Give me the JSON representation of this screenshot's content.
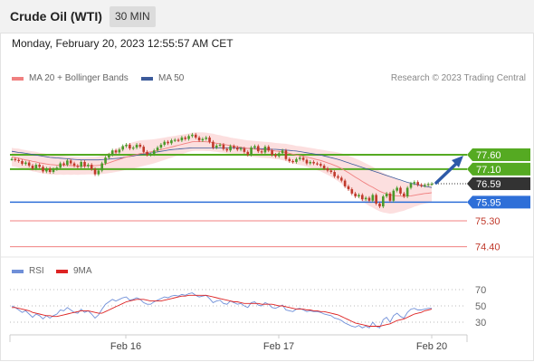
{
  "header": {
    "instrument": "Crude Oil (WTI)",
    "timeframe": "30 MIN"
  },
  "datetime": "Monday, February 20, 2023 12:55:57 AM CET",
  "legend": {
    "bollinger": "MA 20 + Bollinger Bands",
    "ma50": "MA 50",
    "credit": "Research © 2023 Trading Central",
    "rsi": "RSI",
    "rsi_ma": "9MA"
  },
  "colors": {
    "up": "#4a9a2a",
    "down": "#c0392b",
    "ma20": "#f08080",
    "ma50": "#3c5a9a",
    "band": "#fbd9d9",
    "resistance": "#55aa22",
    "support": "#2e6fd8",
    "target": "#f08080",
    "current": "#333333",
    "rsi": "#6f8fd8",
    "rsi_ma": "#dd2222"
  },
  "chart_data": [
    {
      "type": "candlestick",
      "x_ticks": [
        "Feb 16",
        "Feb 17",
        "Feb 20"
      ],
      "ylim": [
        74.2,
        78.3
      ],
      "levels": [
        {
          "value": 77.6,
          "label": "77.60",
          "kind": "resistance"
        },
        {
          "value": 77.1,
          "label": "77.10",
          "kind": "resistance"
        },
        {
          "value": 76.59,
          "label": "76.59",
          "kind": "current"
        },
        {
          "value": 75.95,
          "label": "75.95",
          "kind": "pivot"
        },
        {
          "value": 75.3,
          "label": "75.30",
          "kind": "target"
        },
        {
          "value": 74.4,
          "label": "74.40",
          "kind": "target"
        }
      ],
      "close": [
        77.45,
        77.42,
        77.38,
        77.28,
        77.33,
        77.22,
        77.12,
        77.25,
        77.18,
        77.02,
        77.12,
        77.0,
        77.1,
        77.15,
        77.3,
        77.25,
        77.4,
        77.3,
        77.22,
        77.18,
        77.35,
        77.2,
        77.25,
        77.1,
        76.92,
        77.05,
        77.3,
        77.5,
        77.6,
        77.75,
        77.68,
        77.78,
        77.9,
        77.95,
        77.82,
        77.85,
        77.95,
        77.88,
        77.7,
        77.6,
        77.62,
        77.75,
        77.85,
        77.95,
        78.05,
        78.0,
        78.1,
        78.12,
        78.1,
        78.2,
        78.15,
        78.25,
        78.3,
        78.2,
        78.1,
        78.15,
        78.2,
        78.05,
        77.85,
        77.92,
        77.95,
        77.8,
        77.75,
        77.9,
        77.85,
        77.78,
        77.82,
        77.7,
        77.6,
        77.85,
        77.9,
        77.72,
        77.68,
        77.88,
        77.75,
        77.6,
        77.55,
        77.65,
        77.75,
        77.45,
        77.38,
        77.35,
        77.45,
        77.5,
        77.42,
        77.3,
        77.35,
        77.3,
        77.28,
        77.22,
        77.12,
        77.05,
        77.0,
        76.85,
        76.8,
        76.7,
        76.5,
        76.4,
        76.25,
        76.15,
        76.2,
        76.05,
        76.1,
        76.0,
        76.2,
        75.9,
        75.8,
        76.15,
        76.25,
        76.0,
        76.35,
        76.45,
        76.25,
        76.15,
        76.45,
        76.6,
        76.65,
        76.55,
        76.52,
        76.55,
        76.58,
        76.59
      ],
      "ma20": [
        77.52,
        77.5,
        77.48,
        77.45,
        77.42,
        77.4,
        77.37,
        77.35,
        77.32,
        77.3,
        77.28,
        77.26,
        77.25,
        77.24,
        77.24,
        77.23,
        77.23,
        77.22,
        77.22,
        77.21,
        77.21,
        77.21,
        77.22,
        77.22,
        77.22,
        77.23,
        77.25,
        77.28,
        77.32,
        77.36,
        77.4,
        77.44,
        77.48,
        77.52,
        77.55,
        77.58,
        77.61,
        77.64,
        77.66,
        77.68,
        77.7,
        77.72,
        77.75,
        77.78,
        77.81,
        77.84,
        77.87,
        77.9,
        77.93,
        77.96,
        77.99,
        78.02,
        78.05,
        78.06,
        78.06,
        78.06,
        78.05,
        78.04,
        78.02,
        78.0,
        77.98,
        77.96,
        77.94,
        77.92,
        77.9,
        77.88,
        77.86,
        77.84,
        77.82,
        77.81,
        77.8,
        77.79,
        77.78,
        77.77,
        77.76,
        77.75,
        77.73,
        77.72,
        77.7,
        77.68,
        77.65,
        77.62,
        77.59,
        77.57,
        77.55,
        77.52,
        77.49,
        77.46,
        77.43,
        77.4,
        77.36,
        77.32,
        77.28,
        77.23,
        77.18,
        77.12,
        77.05,
        76.98,
        76.9,
        76.82,
        76.75,
        76.67,
        76.6,
        76.53,
        76.47,
        76.4,
        76.33,
        76.28,
        76.24,
        76.2,
        76.18,
        76.17,
        76.16,
        76.15,
        76.16,
        76.17,
        76.19,
        76.21,
        76.23,
        76.25,
        76.26,
        76.28
      ],
      "ma50": [
        77.72,
        77.7,
        77.68,
        77.67,
        77.65,
        77.63,
        77.61,
        77.59,
        77.57,
        77.55,
        77.53,
        77.51,
        77.5,
        77.49,
        77.48,
        77.47,
        77.46,
        77.45,
        77.44,
        77.43,
        77.42,
        77.42,
        77.42,
        77.42,
        77.42,
        77.42,
        77.43,
        77.44,
        77.45,
        77.46,
        77.47,
        77.48,
        77.5,
        77.52,
        77.54,
        77.56,
        77.58,
        77.6,
        77.62,
        77.64,
        77.66,
        77.68,
        77.7,
        77.72,
        77.74,
        77.76,
        77.78,
        77.79,
        77.8,
        77.81,
        77.82,
        77.83,
        77.84,
        77.84,
        77.84,
        77.84,
        77.84,
        77.84,
        77.84,
        77.84,
        77.84,
        77.84,
        77.84,
        77.84,
        77.84,
        77.84,
        77.83,
        77.83,
        77.82,
        77.82,
        77.82,
        77.81,
        77.81,
        77.8,
        77.8,
        77.79,
        77.79,
        77.78,
        77.77,
        77.76,
        77.75,
        77.74,
        77.73,
        77.71,
        77.69,
        77.67,
        77.65,
        77.63,
        77.61,
        77.59,
        77.56,
        77.53,
        77.5,
        77.47,
        77.44,
        77.4,
        77.36,
        77.32,
        77.28,
        77.24,
        77.2,
        77.16,
        77.12,
        77.08,
        77.04,
        77.0,
        76.96,
        76.92,
        76.88,
        76.84,
        76.8,
        76.76,
        76.72,
        76.68,
        76.64,
        76.61,
        76.58,
        76.55,
        76.52,
        76.5,
        76.48,
        76.46
      ],
      "bb_width": [
        0.32,
        0.32,
        0.33,
        0.33,
        0.34,
        0.34,
        0.35,
        0.35,
        0.35,
        0.35,
        0.35,
        0.35,
        0.34,
        0.34,
        0.33,
        0.33,
        0.32,
        0.32,
        0.31,
        0.31,
        0.3,
        0.3,
        0.3,
        0.3,
        0.3,
        0.31,
        0.32,
        0.34,
        0.36,
        0.38,
        0.4,
        0.42,
        0.43,
        0.44,
        0.45,
        0.46,
        0.46,
        0.46,
        0.45,
        0.44,
        0.43,
        0.42,
        0.41,
        0.4,
        0.39,
        0.38,
        0.37,
        0.36,
        0.35,
        0.34,
        0.33,
        0.32,
        0.32,
        0.32,
        0.32,
        0.32,
        0.32,
        0.31,
        0.31,
        0.3,
        0.3,
        0.29,
        0.29,
        0.28,
        0.28,
        0.28,
        0.28,
        0.28,
        0.28,
        0.28,
        0.28,
        0.28,
        0.28,
        0.28,
        0.28,
        0.28,
        0.28,
        0.28,
        0.29,
        0.3,
        0.31,
        0.32,
        0.32,
        0.33,
        0.33,
        0.34,
        0.35,
        0.36,
        0.37,
        0.38,
        0.4,
        0.42,
        0.44,
        0.47,
        0.5,
        0.53,
        0.56,
        0.59,
        0.62,
        0.65,
        0.67,
        0.69,
        0.7,
        0.71,
        0.71,
        0.71,
        0.7,
        0.69,
        0.67,
        0.65,
        0.62,
        0.58,
        0.54,
        0.5,
        0.46,
        0.43,
        0.4,
        0.38,
        0.36,
        0.35,
        0.34,
        0.33
      ]
    },
    {
      "type": "line",
      "title": "RSI",
      "y_ticks": [
        70,
        50,
        30
      ],
      "ylim": [
        10,
        85
      ],
      "x_ticks": [
        "Feb 16",
        "Feb 17",
        "Feb 20"
      ],
      "series": [
        {
          "name": "RSI",
          "values": [
            50,
            48,
            45,
            42,
            44,
            40,
            36,
            40,
            38,
            34,
            38,
            35,
            38,
            40,
            45,
            44,
            48,
            45,
            42,
            41,
            46,
            42,
            44,
            40,
            35,
            39,
            46,
            52,
            55,
            58,
            56,
            58,
            60,
            61,
            57,
            58,
            60,
            58,
            54,
            52,
            52,
            55,
            57,
            59,
            61,
            60,
            62,
            63,
            62,
            64,
            63,
            65,
            66,
            63,
            61,
            62,
            63,
            59,
            54,
            56,
            57,
            53,
            52,
            56,
            54,
            52,
            53,
            50,
            48,
            54,
            55,
            51,
            50,
            54,
            52,
            48,
            47,
            49,
            51,
            45,
            44,
            43,
            46,
            47,
            45,
            43,
            44,
            43,
            43,
            42,
            40,
            39,
            38,
            35,
            34,
            32,
            29,
            27,
            25,
            24,
            26,
            23,
            25,
            23,
            30,
            25,
            23,
            33,
            36,
            30,
            38,
            41,
            37,
            35,
            42,
            46,
            47,
            45,
            45,
            46,
            47,
            47
          ]
        },
        {
          "name": "9MA",
          "values": [
            48,
            48,
            47,
            46,
            45,
            44,
            42,
            41,
            40,
            39,
            38,
            38,
            37,
            37,
            38,
            39,
            40,
            41,
            42,
            43,
            44,
            44,
            44,
            43,
            42,
            41,
            41,
            43,
            45,
            47,
            49,
            51,
            53,
            55,
            56,
            57,
            58,
            58,
            58,
            57,
            56,
            56,
            56,
            56,
            57,
            58,
            59,
            60,
            61,
            62,
            62,
            63,
            63,
            63,
            63,
            63,
            63,
            62,
            61,
            60,
            59,
            58,
            57,
            56,
            55,
            55,
            54,
            53,
            53,
            53,
            53,
            53,
            52,
            52,
            52,
            52,
            51,
            50,
            50,
            49,
            48,
            47,
            46,
            46,
            46,
            45,
            45,
            44,
            44,
            43,
            43,
            42,
            41,
            40,
            39,
            37,
            35,
            33,
            31,
            29,
            28,
            27,
            26,
            25,
            25,
            25,
            25,
            26,
            27,
            28,
            30,
            32,
            33,
            34,
            36,
            38,
            40,
            41,
            42,
            44,
            45,
            46
          ]
        }
      ]
    }
  ]
}
